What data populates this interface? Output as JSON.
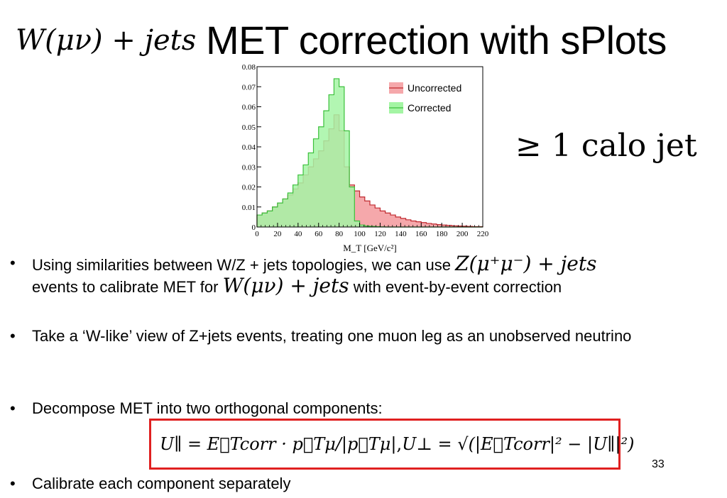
{
  "slide": {
    "title_math": "W(μν) + jets",
    "title": "MET correction with sPlots",
    "side_math": "≥ 1 calo jet",
    "page_number": "33"
  },
  "bullets": [
    {
      "marker": "•",
      "part1": "Using similarities between W/Z + jets topologies, we can use ",
      "math1": "Z(μ⁺μ⁻) + jets",
      "part2": "events to calibrate MET for ",
      "math2": "W(μν) + jets",
      "part3": " with event-by-event correction"
    },
    {
      "marker": "•",
      "text": "Take a ‘W-like’ view of Z+jets events, treating one muon leg as an unobserved neutrino"
    },
    {
      "marker": "•",
      "text": " Decompose MET into two orthogonal components:"
    },
    {
      "marker": "•",
      "text": "Calibrate each component separately"
    }
  ],
  "formula": {
    "u_par": "U∥ = E⃗Tcorr · p⃗Tμ/|p⃗Tμ|",
    "sep": " ,  ",
    "u_perp": "U⊥ = √(|E⃗Tcorr|² − |U∥|²)"
  },
  "chart_data": {
    "type": "area",
    "xlabel": "M_T [GeV/c²]",
    "ylabel": "",
    "xlim": [
      0,
      220
    ],
    "ylim": [
      0,
      0.08
    ],
    "xticks": [
      0,
      20,
      40,
      60,
      80,
      100,
      120,
      140,
      160,
      180,
      200,
      220
    ],
    "yticks": [
      0,
      0.01,
      0.02,
      0.03,
      0.04,
      0.05,
      0.06,
      0.07,
      0.08
    ],
    "ytick_labels": [
      "0",
      "0.01",
      "0.02",
      "0.03",
      "0.04",
      "0.05",
      "0.06",
      "0.07",
      "0.08"
    ],
    "legend_position": "top-right",
    "bin_width": 5,
    "bin_edges_start": 0,
    "series": [
      {
        "name": "Uncorrected",
        "fill": "#f5a8ab",
        "line": "#c0282e",
        "values": [
          0.006,
          0.007,
          0.008,
          0.01,
          0.012,
          0.014,
          0.016,
          0.019,
          0.022,
          0.026,
          0.03,
          0.034,
          0.038,
          0.043,
          0.049,
          0.056,
          0.048,
          0.03,
          0.021,
          0.018,
          0.015,
          0.013,
          0.011,
          0.0095,
          0.008,
          0.007,
          0.006,
          0.005,
          0.0043,
          0.0036,
          0.003,
          0.0026,
          0.0022,
          0.0018,
          0.0015,
          0.0012,
          0.001,
          0.0008,
          0.0006,
          0.0005,
          0.0004,
          0.0003,
          0.0002,
          0.0002
        ]
      },
      {
        "name": "Corrected",
        "fill": "#a4f5a4",
        "line": "#3cc03c",
        "values": [
          0.006,
          0.007,
          0.008,
          0.01,
          0.012,
          0.014,
          0.017,
          0.021,
          0.026,
          0.031,
          0.037,
          0.044,
          0.05,
          0.058,
          0.066,
          0.074,
          0.07,
          0.048,
          0.02,
          0.003,
          0.001,
          0.0005,
          0.0003,
          0.0002,
          0.0001,
          0,
          0,
          0,
          0,
          0,
          0,
          0,
          0,
          0,
          0,
          0,
          0,
          0,
          0,
          0,
          0,
          0,
          0,
          0
        ]
      }
    ]
  }
}
